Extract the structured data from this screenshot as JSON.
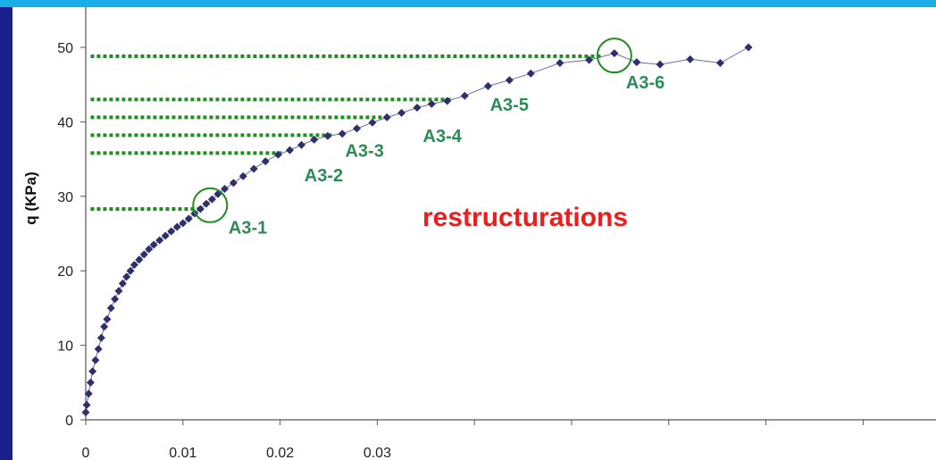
{
  "colors": {
    "background": "#1b1f8c",
    "top_bar": "#19aee8",
    "series": "#2e2f6e",
    "markers": "#228b22",
    "marker_labels": "#2e8b57",
    "highlight": "#ee1c1c"
  },
  "chart_data": {
    "type": "scatter",
    "ylabel": "q (KPa)",
    "xlabel": "",
    "x_tick_labels": [
      "0",
      "0.01",
      "0.02",
      "0.03"
    ],
    "y_tick_labels": [
      "0",
      "10",
      "20",
      "30",
      "40",
      "50"
    ],
    "x_ticks": [
      0,
      0.01,
      0.02,
      0.03,
      0.04,
      0.05,
      0.06,
      0.07,
      0.08
    ],
    "xlim": [
      0,
      0.0875
    ],
    "ylim": [
      0,
      50
    ],
    "grid": false,
    "series": [
      {
        "points": [
          [
            0.0,
            1.0
          ],
          [
            0.0001,
            2.0
          ],
          [
            0.0003,
            3.5
          ],
          [
            0.0005,
            5.0
          ],
          [
            0.0007,
            6.5
          ],
          [
            0.001,
            8.0
          ],
          [
            0.0013,
            9.5
          ],
          [
            0.0016,
            11.0
          ],
          [
            0.0019,
            12.5
          ],
          [
            0.0022,
            13.5
          ],
          [
            0.0026,
            15.0
          ],
          [
            0.003,
            16.2
          ],
          [
            0.0034,
            17.3
          ],
          [
            0.0038,
            18.3
          ],
          [
            0.0042,
            19.2
          ],
          [
            0.0046,
            20.0
          ],
          [
            0.005,
            20.8
          ],
          [
            0.0055,
            21.5
          ],
          [
            0.006,
            22.2
          ],
          [
            0.0065,
            22.9
          ],
          [
            0.007,
            23.5
          ],
          [
            0.0076,
            24.1
          ],
          [
            0.0082,
            24.7
          ],
          [
            0.0088,
            25.3
          ],
          [
            0.0094,
            25.9
          ],
          [
            0.01,
            26.4
          ],
          [
            0.0106,
            27.0
          ],
          [
            0.0112,
            27.7
          ],
          [
            0.0118,
            28.3
          ],
          [
            0.0124,
            29.0
          ],
          [
            0.013,
            29.6
          ],
          [
            0.0136,
            30.3
          ],
          [
            0.0143,
            31.0
          ],
          [
            0.0152,
            31.8
          ],
          [
            0.0162,
            32.7
          ],
          [
            0.0173,
            33.7
          ],
          [
            0.0185,
            34.7
          ],
          [
            0.0198,
            35.6
          ],
          [
            0.021,
            36.2
          ],
          [
            0.0222,
            36.9
          ],
          [
            0.0235,
            37.6
          ],
          [
            0.0249,
            38.1
          ],
          [
            0.0264,
            38.4
          ],
          [
            0.0279,
            39.1
          ],
          [
            0.0295,
            39.9
          ],
          [
            0.031,
            40.6
          ],
          [
            0.0325,
            41.2
          ],
          [
            0.0341,
            41.9
          ],
          [
            0.0356,
            42.4
          ],
          [
            0.0372,
            42.8
          ],
          [
            0.039,
            43.5
          ],
          [
            0.0414,
            44.8
          ],
          [
            0.0436,
            45.6
          ],
          [
            0.0458,
            46.5
          ],
          [
            0.0488,
            47.9
          ],
          [
            0.0518,
            48.3
          ],
          [
            0.0544,
            49.2
          ],
          [
            0.0567,
            48.0
          ],
          [
            0.0591,
            47.7
          ],
          [
            0.0622,
            48.4
          ],
          [
            0.0653,
            47.9
          ],
          [
            0.0682,
            50.0
          ]
        ]
      }
    ],
    "reference_levels": [
      48.8,
      43.0,
      40.6,
      38.2,
      35.8,
      28.3
    ],
    "annotations": [
      {
        "text": "A3-1",
        "x": 0.0128,
        "y": 28.8,
        "circled": true,
        "label_x": 0.0147,
        "label_y": 25.0
      },
      {
        "text": "A3-2",
        "x": 0.0225,
        "y": 32.0
      },
      {
        "text": "A3-3",
        "x": 0.0267,
        "y": 35.3
      },
      {
        "text": "A3-4",
        "x": 0.0347,
        "y": 37.3
      },
      {
        "text": "A3-5",
        "x": 0.0416,
        "y": 41.5
      },
      {
        "text": "A3-6",
        "x": 0.0544,
        "y": 48.9,
        "circled": true,
        "label_x": 0.0556,
        "label_y": 44.5
      }
    ],
    "highlight_text": "restructurations"
  }
}
